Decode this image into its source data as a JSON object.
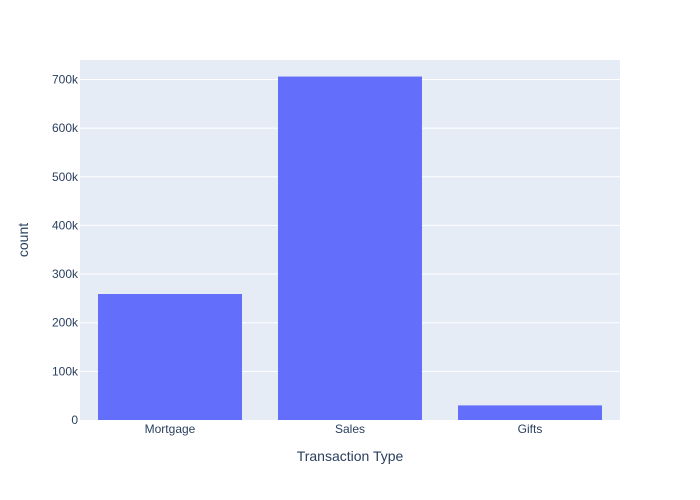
{
  "chart_data": {
    "type": "bar",
    "categories": [
      "Mortgage",
      "Sales",
      "Gifts"
    ],
    "values": [
      259000,
      706000,
      30000
    ],
    "xlabel": "Transaction Type",
    "ylabel": "count",
    "ylim": [
      0,
      740000
    ],
    "yticks": [
      0,
      100000,
      200000,
      300000,
      400000,
      500000,
      600000,
      700000
    ],
    "ytick_labels": [
      "0",
      "100k",
      "200k",
      "300k",
      "400k",
      "500k",
      "600k",
      "700k"
    ],
    "grid": true,
    "legend": "none",
    "colors": {
      "bar": "#636efa",
      "plot_background": "#e5ecf6",
      "grid": "#ffffff",
      "text": "#2a3f5f"
    }
  }
}
